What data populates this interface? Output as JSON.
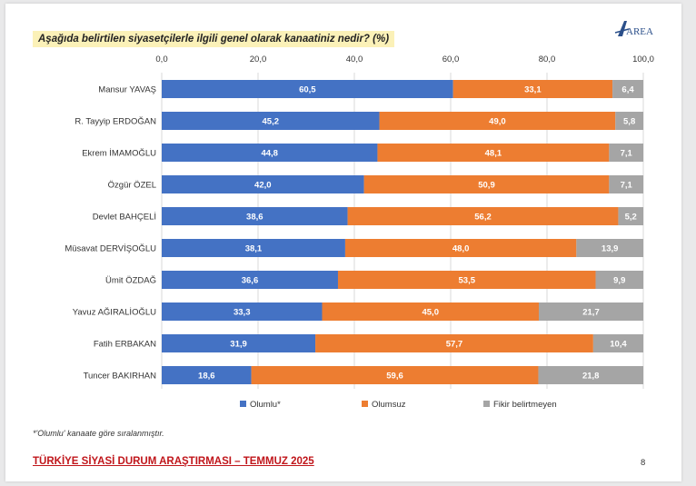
{
  "question": "Aşağıda belirtilen siyasetçilerle ilgili genel olarak kanaatiniz nedir? (%)",
  "logo_text": "AREA",
  "footnote": "*'Olumlu' kanaate göre sıralanmıştır.",
  "footer_title": "TÜRKİYE SİYASİ DURUM ARAŞTIRMASI – TEMMUZ 2025",
  "page_number": "8",
  "chart_data": {
    "type": "bar",
    "orientation": "horizontal",
    "stacked": true,
    "title": "",
    "xlim": [
      0,
      100
    ],
    "x_ticks": [
      "0,0",
      "20,0",
      "40,0",
      "60,0",
      "80,0",
      "100,0"
    ],
    "x_axis_position": "top",
    "legend_position": "bottom",
    "categories": [
      "Mansur YAVAŞ",
      "R. Tayyip ERDOĞAN",
      "Ekrem İMAMOĞLU",
      "Özgür ÖZEL",
      "Devlet BAHÇELİ",
      "Müsavat DERVİŞOĞLU",
      "Ümit ÖZDAĞ",
      "Yavuz AĞIRALİOĞLU",
      "Fatih ERBAKAN",
      "Tuncer BAKIRHAN"
    ],
    "series": [
      {
        "name": "Olumlu*",
        "color": "#4472c4",
        "values": [
          60.5,
          45.2,
          44.8,
          42.0,
          38.6,
          38.1,
          36.6,
          33.3,
          31.9,
          18.6
        ],
        "labels": [
          "60,5",
          "45,2",
          "44,8",
          "42,0",
          "38,6",
          "38,1",
          "36,6",
          "33,3",
          "31,9",
          "18,6"
        ]
      },
      {
        "name": "Olumsuz",
        "color": "#ed7d31",
        "values": [
          33.1,
          49.0,
          48.1,
          50.9,
          56.2,
          48.0,
          53.5,
          45.0,
          57.7,
          59.6
        ],
        "labels": [
          "33,1",
          "49,0",
          "48,1",
          "50,9",
          "56,2",
          "48,0",
          "53,5",
          "45,0",
          "57,7",
          "59,6"
        ]
      },
      {
        "name": "Fikir belirtmeyen",
        "color": "#a5a5a5",
        "values": [
          6.4,
          5.8,
          7.1,
          7.1,
          5.2,
          13.9,
          9.9,
          21.7,
          10.4,
          21.8
        ],
        "labels": [
          "6,4",
          "5,8",
          "7,1",
          "7,1",
          "5,2",
          "13,9",
          "9,9",
          "21,7",
          "10,4",
          "21,8"
        ]
      }
    ]
  }
}
